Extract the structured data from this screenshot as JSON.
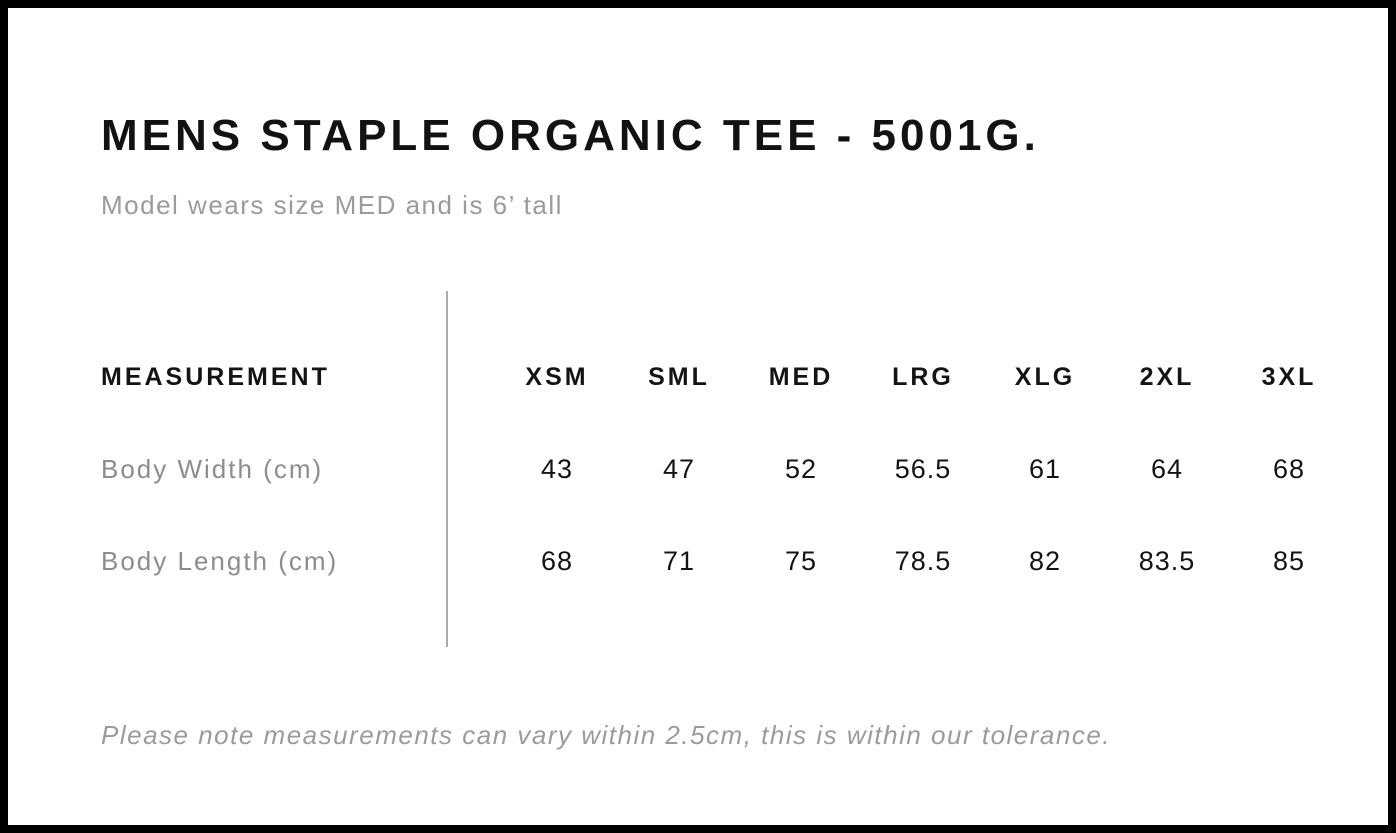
{
  "header": {
    "title": "MENS STAPLE ORGANIC TEE - 5001G.",
    "subtitle": "Model wears size MED and is 6’ tall"
  },
  "chart_data": {
    "type": "table",
    "title": "MENS STAPLE ORGANIC TEE - 5001G.",
    "columns": [
      "MEASUREMENT",
      "XSM",
      "SML",
      "MED",
      "LRG",
      "XLG",
      "2XL",
      "3XL"
    ],
    "rows": [
      {
        "label": "Body Width (cm)",
        "values": [
          "43",
          "47",
          "52",
          "56.5",
          "61",
          "64",
          "68"
        ]
      },
      {
        "label": "Body Length (cm)",
        "values": [
          "68",
          "71",
          "75",
          "78.5",
          "82",
          "83.5",
          "85"
        ]
      }
    ]
  },
  "footer": {
    "note": "Please note measurements can vary within 2.5cm, this is within our tolerance."
  },
  "colors": {
    "text": "#141414",
    "muted_gray": "#9b9b9b",
    "label_gray": "#8d8d8d",
    "divider_gray": "#ababab",
    "border_black": "#000000"
  }
}
